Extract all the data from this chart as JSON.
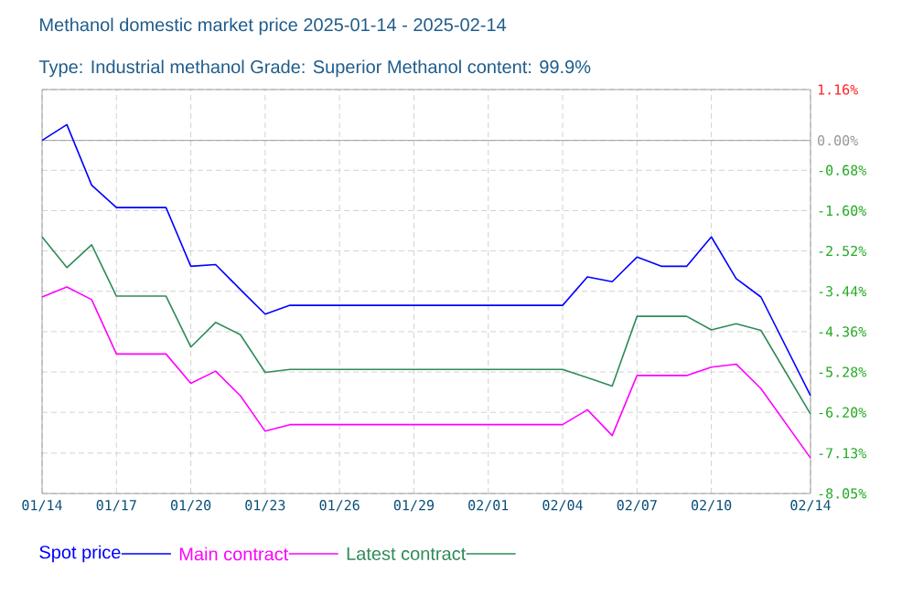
{
  "chart_data": {
    "type": "line",
    "title": "Methanol domestic market price 2025-01-14 - 2025-02-14",
    "subtitle": "Type: Industrial methanol Grade: Superior Methanol content: 99.9%",
    "x": [
      "2025-01-14",
      "2025-01-15",
      "2025-01-16",
      "2025-01-17",
      "2025-01-19",
      "2025-01-20",
      "2025-01-21",
      "2025-01-22",
      "2025-01-23",
      "2025-01-24",
      "2025-02-04",
      "2025-02-05",
      "2025-02-06",
      "2025-02-07",
      "2025-02-08",
      "2025-02-09",
      "2025-02-10",
      "2025-02-11",
      "2025-02-12",
      "2025-02-14"
    ],
    "series": [
      {
        "name": "Spot price",
        "color": "#0000ff",
        "values": [
          0.0,
          0.36,
          -1.02,
          -1.53,
          -1.53,
          -2.87,
          -2.83,
          -3.4,
          -3.96,
          -3.76,
          -3.76,
          -3.11,
          -3.22,
          -2.66,
          -2.87,
          -2.87,
          -2.2,
          -3.15,
          -3.57,
          -5.82
        ]
      },
      {
        "name": "Main contract",
        "color": "#ff00ff",
        "values": [
          -3.57,
          -3.34,
          -3.63,
          -4.87,
          -4.87,
          -5.54,
          -5.26,
          -5.82,
          -6.63,
          -6.48,
          -6.48,
          -6.14,
          -6.73,
          -5.36,
          -5.36,
          -5.36,
          -5.17,
          -5.1,
          -5.66,
          -7.24
        ]
      },
      {
        "name": "Latest contract",
        "color": "#2e8b57",
        "values": [
          -2.2,
          -2.9,
          -2.38,
          -3.55,
          -3.55,
          -4.71,
          -4.15,
          -4.43,
          -5.29,
          -5.22,
          -5.22,
          -5.41,
          -5.6,
          -4.01,
          -4.01,
          -4.01,
          -4.32,
          -4.18,
          -4.33,
          -6.24
        ]
      }
    ],
    "xlim": [
      "2025-01-14",
      "2025-02-14"
    ],
    "xticks": [
      {
        "value": "2025-01-14",
        "label": "01/14"
      },
      {
        "value": "2025-01-17",
        "label": "01/17"
      },
      {
        "value": "2025-01-20",
        "label": "01/20"
      },
      {
        "value": "2025-01-23",
        "label": "01/23"
      },
      {
        "value": "2025-01-26",
        "label": "01/26"
      },
      {
        "value": "2025-01-29",
        "label": "01/29"
      },
      {
        "value": "2025-02-01",
        "label": "02/01"
      },
      {
        "value": "2025-02-04",
        "label": "02/04"
      },
      {
        "value": "2025-02-07",
        "label": "02/07"
      },
      {
        "value": "2025-02-10",
        "label": "02/10"
      },
      {
        "value": "2025-02-14",
        "label": "02/14"
      }
    ],
    "ylim": [
      -8.05,
      1.16
    ],
    "yticks": [
      {
        "value": 1.16,
        "label": "1.16%"
      },
      {
        "value": 0,
        "label": "0.00%"
      },
      {
        "value": -0.68,
        "label": "-0.68%"
      },
      {
        "value": -1.6,
        "label": "-1.60%"
      },
      {
        "value": -2.52,
        "label": "-2.52%"
      },
      {
        "value": -3.44,
        "label": "-3.44%"
      },
      {
        "value": -4.36,
        "label": "-4.36%"
      },
      {
        "value": -5.28,
        "label": "-5.28%"
      },
      {
        "value": -6.2,
        "label": "-6.20%"
      },
      {
        "value": -7.13,
        "label": "-7.13%"
      },
      {
        "value": -8.05,
        "label": "-8.05%"
      }
    ],
    "grid": true,
    "legend": "bottom",
    "line_style": "solid"
  }
}
